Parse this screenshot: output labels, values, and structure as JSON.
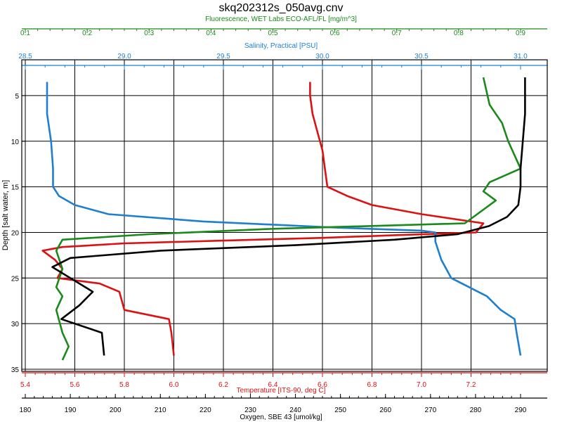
{
  "chart_data": {
    "type": "line",
    "title": "skq202312s_050avg.cnv",
    "grid": true,
    "ylabel": "Depth [salt water, m]",
    "ylim": [
      35,
      2
    ],
    "yticks": [
      5,
      10,
      15,
      20,
      25,
      30,
      35
    ],
    "axes": [
      {
        "key": "fluor",
        "label": "Fluorescence, WET Labs ECO-AFL/FL [mg/m^3]",
        "position": "top",
        "color": "#1a8a1a",
        "min": 0.1,
        "max": 0.9,
        "ticks": [
          0.1,
          0.2,
          0.3,
          0.4,
          0.5,
          0.6,
          0.7,
          0.8,
          0.9
        ]
      },
      {
        "key": "sal",
        "label": "Salinity, Practical [PSU]",
        "position": "top",
        "color": "#1e7fd0",
        "min": 28.5,
        "max": 31.0,
        "ticks": [
          28.5,
          29.0,
          29.5,
          30.0,
          30.5,
          31.0
        ]
      },
      {
        "key": "temp",
        "label": "Temperature [ITS-90, deg C]",
        "position": "bottom",
        "color": "#dd1111",
        "min": 5.4,
        "max": 7.4,
        "ticks": [
          5.4,
          5.6,
          5.8,
          6.0,
          6.2,
          6.4,
          6.6,
          6.8,
          7.0,
          7.2
        ]
      },
      {
        "key": "oxy",
        "label": "Oxygen, SBE 43 [umol/kg]",
        "position": "bottom",
        "color": "#000000",
        "min": 180,
        "max": 290,
        "ticks": [
          180,
          190,
          200,
          210,
          220,
          230,
          240,
          250,
          260,
          270,
          280,
          290
        ]
      }
    ],
    "series": [
      {
        "axis": "temp",
        "color": "#dd1111",
        "points": [
          [
            6.55,
            3.5
          ],
          [
            6.55,
            5
          ],
          [
            6.56,
            7
          ],
          [
            6.58,
            9
          ],
          [
            6.6,
            11
          ],
          [
            6.61,
            13
          ],
          [
            6.62,
            15
          ],
          [
            6.7,
            16
          ],
          [
            6.8,
            17
          ],
          [
            7.0,
            18
          ],
          [
            7.25,
            19
          ],
          [
            7.22,
            20
          ],
          [
            6.9,
            20.3
          ],
          [
            6.6,
            20.6
          ],
          [
            6.2,
            20.9
          ],
          [
            5.8,
            21.2
          ],
          [
            5.55,
            21.6
          ],
          [
            5.47,
            22
          ],
          [
            5.52,
            23
          ],
          [
            5.55,
            24
          ],
          [
            5.53,
            25
          ],
          [
            5.7,
            25.6
          ],
          [
            5.78,
            26.5
          ],
          [
            5.8,
            28.5
          ],
          [
            5.98,
            29.5
          ],
          [
            5.99,
            31
          ],
          [
            6.0,
            33.5
          ]
        ]
      },
      {
        "axis": "sal",
        "color": "#1e7fd0",
        "points": [
          [
            28.61,
            3.5
          ],
          [
            28.61,
            7
          ],
          [
            28.63,
            10
          ],
          [
            28.64,
            13
          ],
          [
            28.64,
            15
          ],
          [
            28.67,
            16
          ],
          [
            28.75,
            17
          ],
          [
            28.92,
            18
          ],
          [
            29.4,
            18.8
          ],
          [
            30.1,
            19.5
          ],
          [
            30.5,
            19.8
          ],
          [
            30.57,
            20
          ],
          [
            30.57,
            21
          ],
          [
            30.6,
            23
          ],
          [
            30.65,
            25
          ],
          [
            30.83,
            27
          ],
          [
            30.9,
            28.5
          ],
          [
            30.97,
            29.5
          ],
          [
            30.98,
            31
          ],
          [
            31.0,
            33.5
          ]
        ]
      },
      {
        "axis": "fluor",
        "color": "#1a8a1a",
        "points": [
          [
            0.84,
            3
          ],
          [
            0.85,
            6
          ],
          [
            0.87,
            8
          ],
          [
            0.88,
            10
          ],
          [
            0.89,
            11.5
          ],
          [
            0.9,
            13
          ],
          [
            0.85,
            14.5
          ],
          [
            0.84,
            15.5
          ],
          [
            0.86,
            16.5
          ],
          [
            0.83,
            18
          ],
          [
            0.81,
            19
          ],
          [
            0.5,
            19.6
          ],
          [
            0.3,
            20.2
          ],
          [
            0.16,
            20.8
          ],
          [
            0.15,
            22
          ],
          [
            0.16,
            24
          ],
          [
            0.15,
            26
          ],
          [
            0.16,
            27
          ],
          [
            0.15,
            28.5
          ],
          [
            0.16,
            31
          ],
          [
            0.17,
            32.5
          ],
          [
            0.16,
            34
          ]
        ]
      },
      {
        "axis": "oxy",
        "color": "#000000",
        "points": [
          [
            291,
            3
          ],
          [
            291,
            7
          ],
          [
            290.5,
            10
          ],
          [
            290,
            13
          ],
          [
            290,
            15
          ],
          [
            289.5,
            17
          ],
          [
            287,
            18.3
          ],
          [
            283,
            19.3
          ],
          [
            276,
            20.2
          ],
          [
            262,
            20.8
          ],
          [
            240,
            21.4
          ],
          [
            210,
            22
          ],
          [
            190,
            22.8
          ],
          [
            186,
            23.8
          ],
          [
            190,
            25
          ],
          [
            195,
            26.5
          ],
          [
            192,
            28
          ],
          [
            188,
            29.5
          ],
          [
            197,
            31
          ],
          [
            197.5,
            33.5
          ]
        ]
      }
    ]
  }
}
